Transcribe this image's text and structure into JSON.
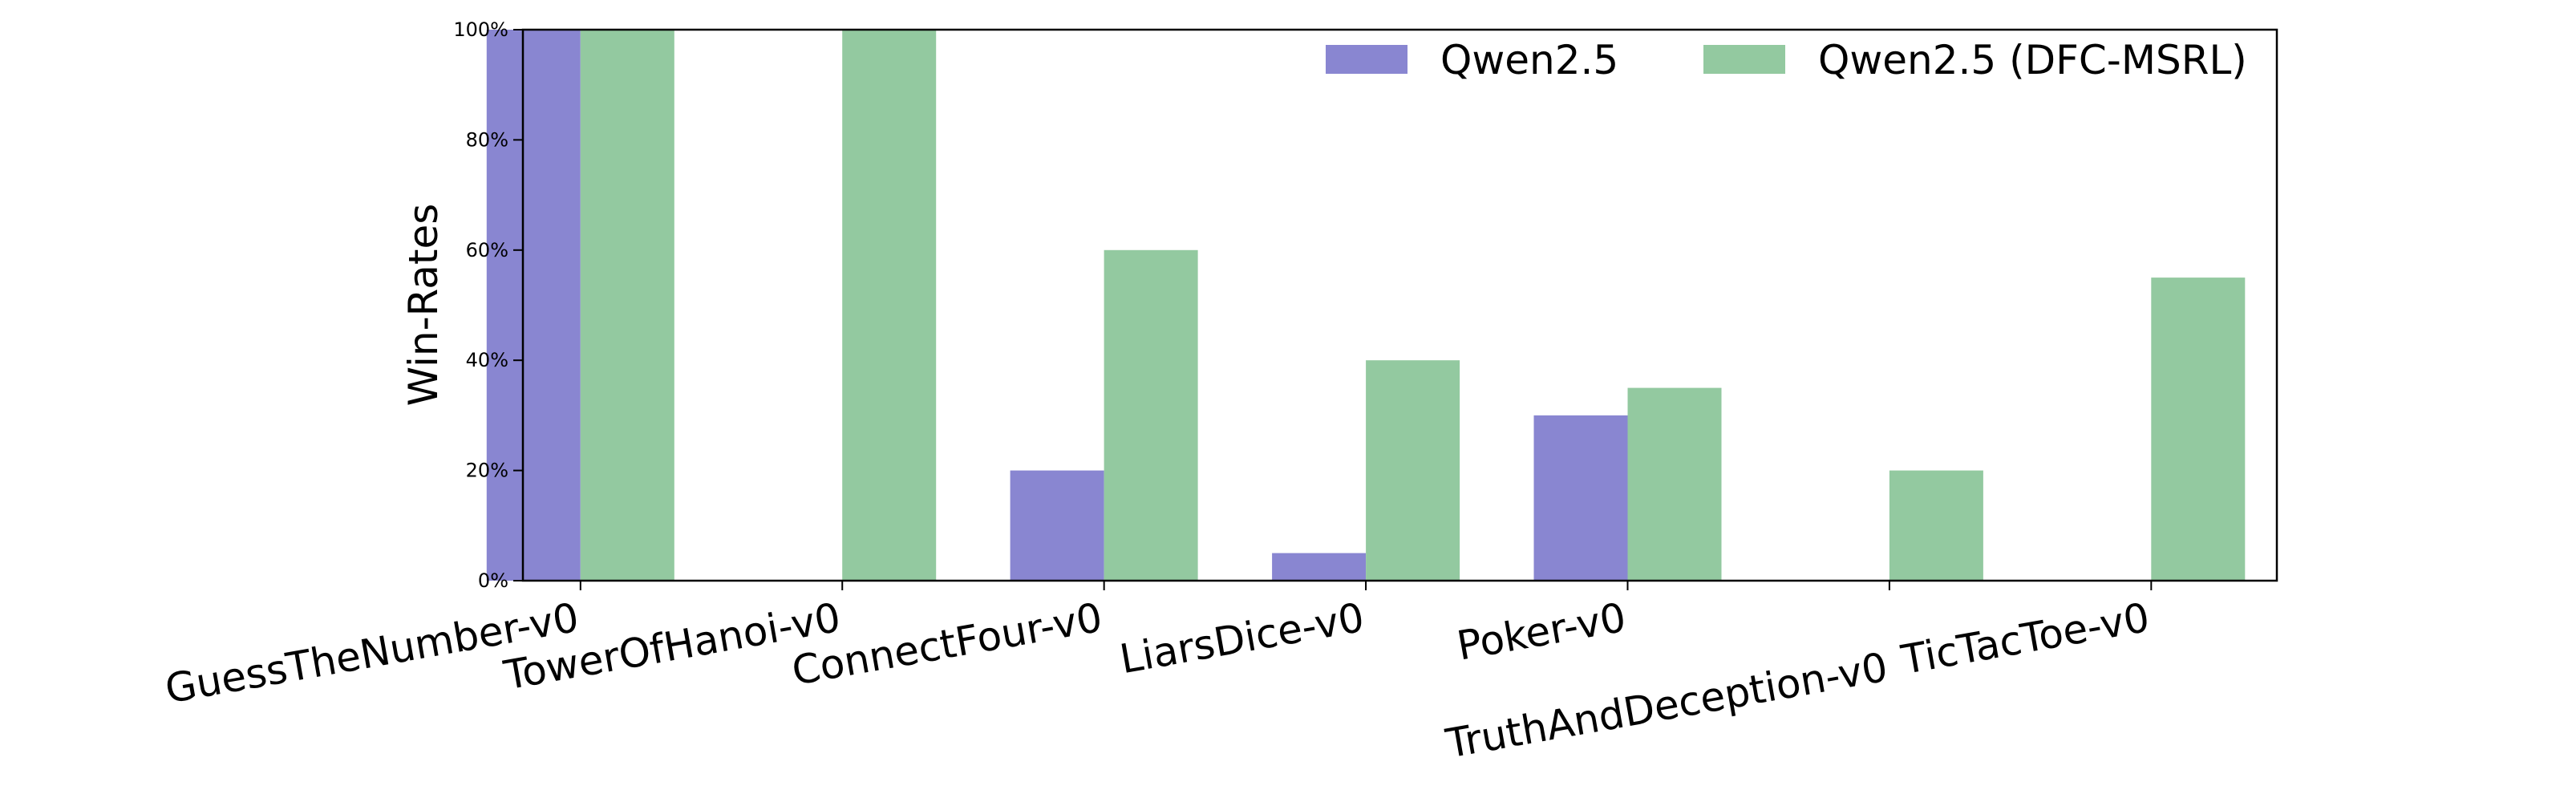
{
  "chart_data": {
    "type": "bar",
    "ylabel": "Win-Rates",
    "xlabel": "",
    "title": "",
    "ylim": [
      0,
      100
    ],
    "yticks": [
      0,
      20,
      40,
      60,
      80,
      100
    ],
    "ytick_labels": [
      "0%",
      "20%",
      "40%",
      "60%",
      "80%",
      "100%"
    ],
    "categories": [
      "GuessTheNumber-v0",
      "TowerOfHanoi-v0",
      "ConnectFour-v0",
      "LiarsDice-v0",
      "Poker-v0",
      "TruthAndDeception-v0",
      "TicTacToe-v0"
    ],
    "series": [
      {
        "name": "Qwen2.5",
        "color": "#8986d1",
        "values": [
          100,
          0,
          20,
          5,
          30,
          0,
          0
        ]
      },
      {
        "name": "Qwen2.5 (DFC-MSRL)",
        "color": "#93c9a0",
        "values": [
          100,
          100,
          60,
          40,
          35,
          20,
          55
        ]
      }
    ],
    "legend_position": "top-right",
    "grid": false
  }
}
